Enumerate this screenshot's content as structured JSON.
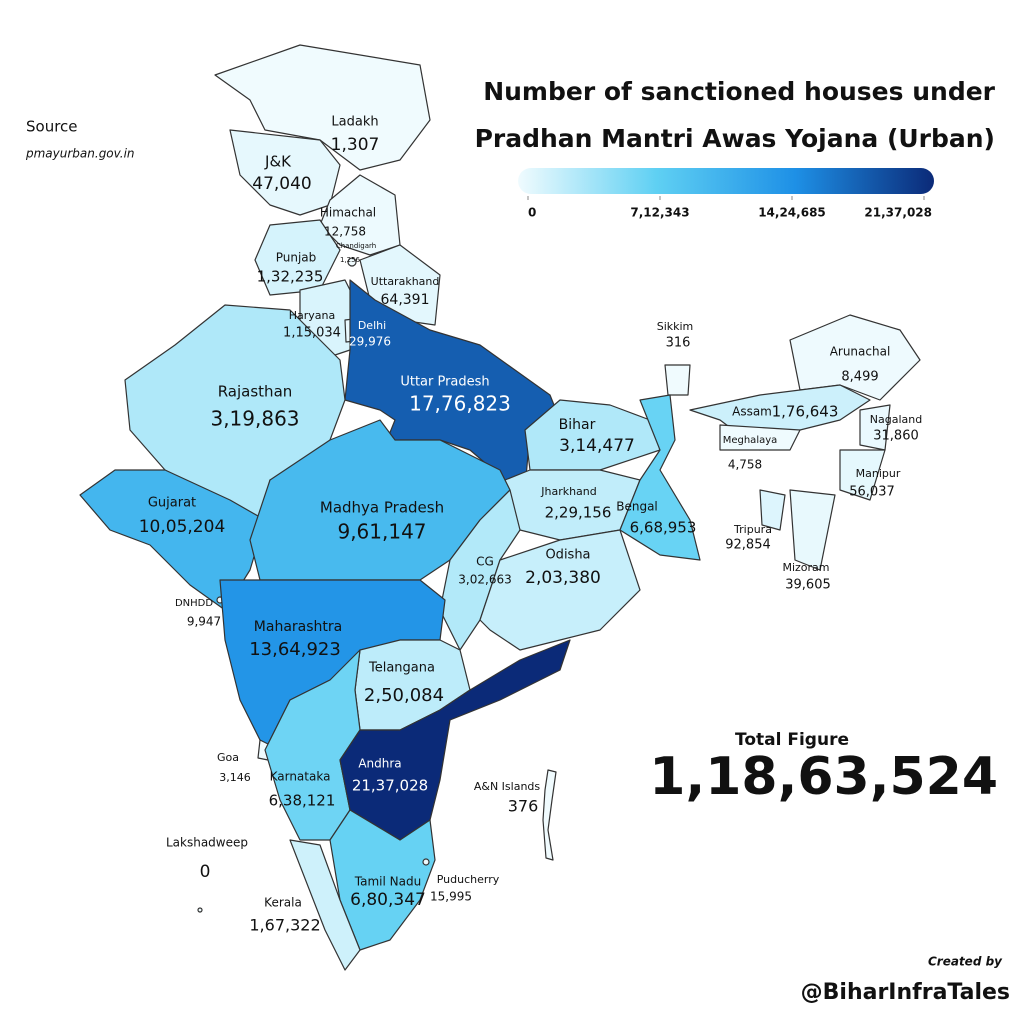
{
  "source": {
    "label": "Source",
    "url": "pmayurban.gov.in"
  },
  "map_data": {
    "type": "choropleth",
    "title": [
      "Number of sanctioned houses under",
      "Pradhan Mantri Awas Yojana (Urban)"
    ],
    "scale": {
      "lim": [
        0,
        2137028
      ],
      "colors": [
        "#f0fbfe",
        "#5fd0f3",
        "#1e90e6",
        "#0b2a78"
      ],
      "ticks": [
        0,
        {
          "value": 712343,
          "label": "7,12,343"
        },
        {
          "value": 1424685,
          "label": "14,24,685"
        },
        {
          "value": 2137028,
          "label": "21,37,028"
        }
      ]
    },
    "regions": [
      {
        "name": "Ladakh",
        "value": 1307,
        "value_label": "1,307"
      },
      {
        "name": "J&K",
        "value": 47040,
        "value_label": "47,040"
      },
      {
        "name": "Himachal",
        "value": 12758,
        "value_label": "12,758"
      },
      {
        "name": "Chandigarh",
        "value": 1256,
        "value_label": "1,256"
      },
      {
        "name": "Punjab",
        "value": 132235,
        "value_label": "1,32,235"
      },
      {
        "name": "Uttarakhand",
        "value": 64391,
        "value_label": "64,391"
      },
      {
        "name": "Haryana",
        "value": 115034,
        "value_label": "1,15,034"
      },
      {
        "name": "Delhi",
        "value": 29976,
        "value_label": "29,976"
      },
      {
        "name": "Uttar Pradesh",
        "value": 1776823,
        "value_label": "17,76,823"
      },
      {
        "name": "Rajasthan",
        "value": 319863,
        "value_label": "3,19,863"
      },
      {
        "name": "Sikkim",
        "value": 316
      },
      {
        "name": "Arunachal",
        "value": 8499,
        "value_label": "8,499"
      },
      {
        "name": "Assam",
        "value": 176643,
        "value_label": "1,76,643"
      },
      {
        "name": "Nagaland",
        "value": 31860,
        "value_label": "31,860"
      },
      {
        "name": "Meghalaya",
        "value": 4758,
        "value_label": "4,758"
      },
      {
        "name": "Manipur",
        "value": 56037,
        "value_label": "56,037"
      },
      {
        "name": "Bihar",
        "value": 314477,
        "value_label": "3,14,477"
      },
      {
        "name": "Jharkhand",
        "value": 229156,
        "value_label": "2,29,156"
      },
      {
        "name": "Bengal",
        "value": 668953,
        "value_label": "6,68,953"
      },
      {
        "name": "Tripura",
        "value": 92854,
        "value_label": "92,854"
      },
      {
        "name": "Mizoram",
        "value": 39605,
        "value_label": "39,605"
      },
      {
        "name": "Gujarat",
        "value": 1005204,
        "value_label": "10,05,204"
      },
      {
        "name": "Madhya Pradesh",
        "value": 961147,
        "value_label": "9,61,147"
      },
      {
        "name": "CG",
        "value": 302663,
        "value_label": "3,02,663"
      },
      {
        "name": "Odisha",
        "value": 203380,
        "value_label": "2,03,380"
      },
      {
        "name": "DNHDD",
        "value": 9947,
        "value_label": "9,947"
      },
      {
        "name": "Maharashtra",
        "value": 1364923,
        "value_label": "13,64,923"
      },
      {
        "name": "Telangana",
        "value": 250084,
        "value_label": "2,50,084"
      },
      {
        "name": "Goa",
        "value": 3146,
        "value_label": "3,146"
      },
      {
        "name": "Karnataka",
        "value": 638121,
        "value_label": "6,38,121"
      },
      {
        "name": "Andhra",
        "value": 2137028,
        "value_label": "21,37,028"
      },
      {
        "name": "A&N Islands",
        "value": 376
      },
      {
        "name": "Lakshadweep",
        "value": 0
      },
      {
        "name": "Tamil Nadu",
        "value": 680347,
        "value_label": "6,80,347"
      },
      {
        "name": "Puducherry",
        "value": 15995,
        "value_label": "15,995"
      },
      {
        "name": "Kerala",
        "value": 167322,
        "value_label": "1,67,322"
      }
    ]
  },
  "total": {
    "label": "Total Figure",
    "value": 11863524,
    "value_label": "1,18,63,524"
  },
  "credit": {
    "label": "Created by",
    "handle": "@BiharInfraTales"
  }
}
